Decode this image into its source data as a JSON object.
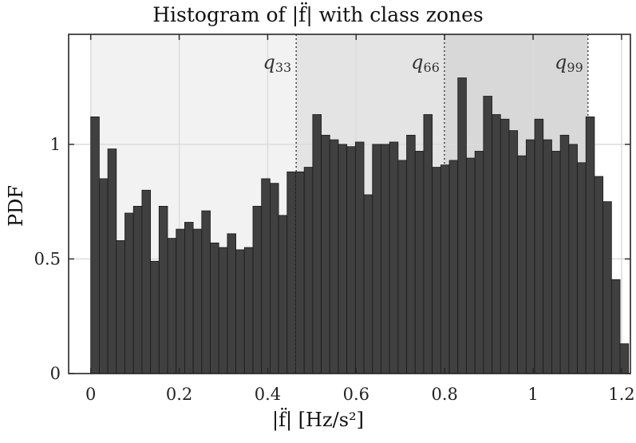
{
  "chart_data": {
    "type": "bar",
    "title": "Histogram of |f̈| with class zones",
    "xlabel": "|f̈| [Hz/s²]",
    "ylabel": "PDF",
    "xlim": [
      -0.05,
      1.22
    ],
    "ylim": [
      0,
      1.48
    ],
    "xticks": [
      0,
      0.2,
      0.4,
      0.6,
      0.8,
      1,
      1.2
    ],
    "xtick_labels": [
      "0",
      "0.2",
      "0.4",
      "0.6",
      "0.8",
      "1",
      "1.2"
    ],
    "yticks": [
      0,
      0.5,
      1
    ],
    "ytick_labels": [
      "0",
      "0.5",
      "1"
    ],
    "grid": true,
    "bin_width": 0.0193,
    "bin_start": 0,
    "values": [
      1.12,
      0.85,
      0.98,
      0.58,
      0.7,
      0.73,
      0.8,
      0.49,
      0.73,
      0.59,
      0.63,
      0.66,
      0.63,
      0.71,
      0.57,
      0.55,
      0.61,
      0.54,
      0.55,
      0.73,
      0.85,
      0.83,
      0.69,
      0.88,
      0.88,
      0.9,
      1.13,
      1.04,
      1.02,
      1.0,
      0.99,
      1.01,
      0.78,
      1.0,
      1.0,
      1.01,
      0.93,
      1.04,
      0.97,
      1.13,
      0.9,
      0.91,
      0.93,
      1.29,
      0.94,
      0.97,
      1.21,
      1.13,
      1.11,
      1.06,
      0.95,
      1.02,
      1.11,
      1.02,
      0.97,
      1.04,
      1.0,
      0.92,
      1.12,
      0.86,
      0.75,
      0.41,
      0.13
    ],
    "zones": [
      {
        "from": 0,
        "to": 0.4645,
        "color": "#f2f2f2"
      },
      {
        "from": 0.4645,
        "to": 0.7995,
        "color": "#e4e4e4"
      },
      {
        "from": 0.7995,
        "to": 1.124,
        "color": "#d8d8d8"
      }
    ],
    "quantiles": [
      {
        "label": "q",
        "sub": "33",
        "x": 0.4645
      },
      {
        "label": "q",
        "sub": "66",
        "x": 0.7995
      },
      {
        "label": "q",
        "sub": "99",
        "x": 1.124
      }
    ],
    "colors": {
      "bar": "#404040",
      "bar_edge": "#1a1a1a"
    }
  }
}
